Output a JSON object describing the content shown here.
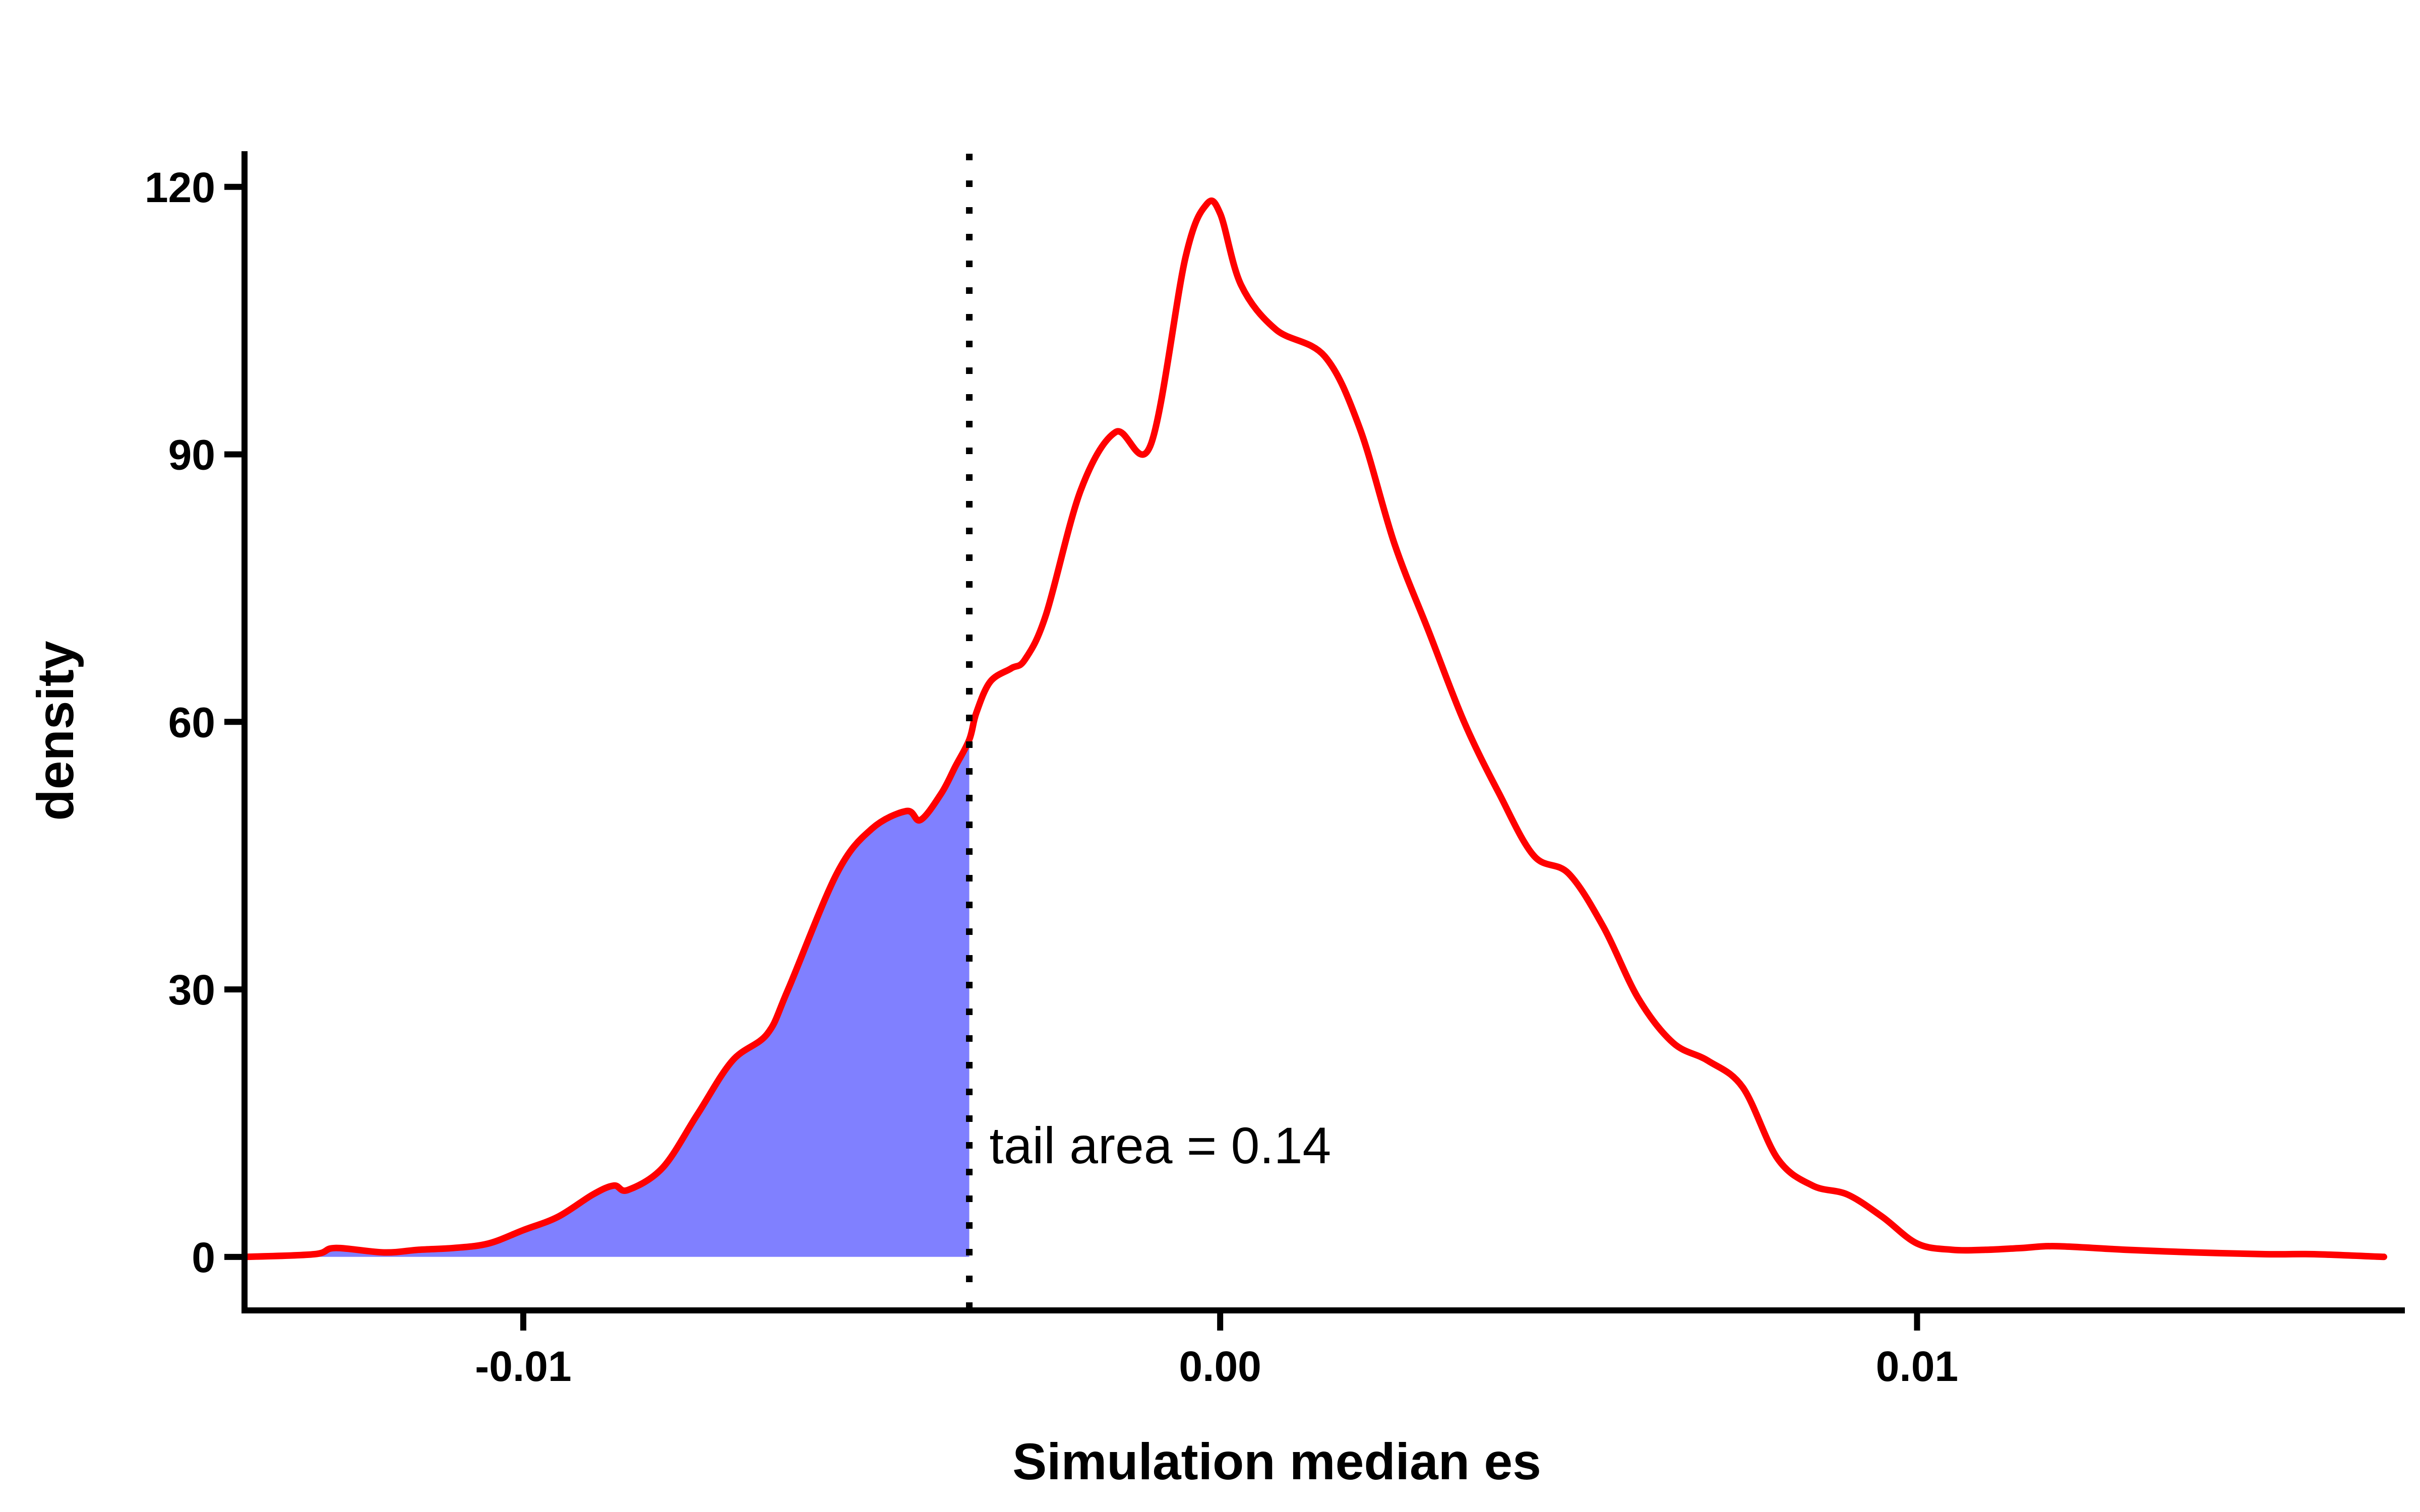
{
  "chart_data": {
    "type": "area",
    "xlabel": "Simulation median es",
    "ylabel": "density",
    "xlim": [
      -0.014,
      0.017
    ],
    "ylim": [
      -6,
      124
    ],
    "xticks": [
      -0.01,
      0.0,
      0.01
    ],
    "xtick_labels": [
      "-0.01",
      "0.00",
      "0.01"
    ],
    "yticks": [
      0,
      30,
      60,
      90,
      120
    ],
    "ytick_labels": [
      "0",
      "30",
      "60",
      "90",
      "120"
    ],
    "grid": false,
    "legend": "none",
    "threshold_x": -0.0036,
    "annotation": "tail area =  0.14",
    "colors": {
      "curve": "#ff0000",
      "tail_fill": "#8080ff",
      "axis": "#000000"
    },
    "series": [
      {
        "x": [
          -0.014,
          -0.013,
          -0.0127,
          -0.012,
          -0.0115,
          -0.011,
          -0.0105,
          -0.01,
          -0.0095,
          -0.009,
          -0.0087,
          -0.0085,
          -0.008,
          -0.0075,
          -0.007,
          -0.0065,
          -0.0062,
          -0.0055,
          -0.005,
          -0.0045,
          -0.0043,
          -0.004,
          -0.0038,
          -0.0036,
          -0.0035,
          -0.0033,
          -0.003,
          -0.0028,
          -0.0025,
          -0.002,
          -0.0015,
          -0.001,
          -0.0005,
          -0.0002,
          0.0,
          0.0003,
          0.0008,
          0.0015,
          0.002,
          0.0025,
          0.003,
          0.0035,
          0.004,
          0.0045,
          0.005,
          0.0055,
          0.006,
          0.0065,
          0.007,
          0.0075,
          0.008,
          0.0085,
          0.009,
          0.0095,
          0.01,
          0.0105,
          0.011,
          0.0115,
          0.012,
          0.013,
          0.014,
          0.015,
          0.0157,
          0.0167
        ],
        "y": [
          0,
          0.3,
          1,
          0.5,
          0.8,
          1,
          1.5,
          3,
          4.5,
          7,
          8,
          7.5,
          10,
          16,
          22,
          25,
          30,
          43,
          48,
          50,
          49,
          52,
          55,
          58,
          61,
          64.5,
          66,
          67,
          72,
          86,
          92.5,
          91,
          112,
          118,
          117,
          109,
          104,
          101,
          93,
          80,
          70,
          60,
          52,
          45,
          43,
          37,
          29,
          24,
          22,
          19,
          11,
          8,
          7,
          4.5,
          1.5,
          0.8,
          0.8,
          1,
          1.2,
          0.8,
          0.5,
          0.3,
          0.3,
          0
        ]
      }
    ]
  }
}
